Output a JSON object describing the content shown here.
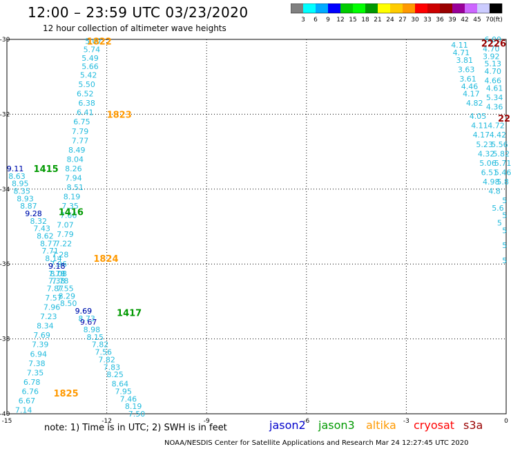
{
  "header": {
    "title": "12:00 – 23:59 UTC 03/23/2020",
    "subtitle": "12 hour collection of altimeter wave heights"
  },
  "legend": {
    "unit": "(ft)",
    "levels": [
      "3",
      "6",
      "9",
      "12",
      "15",
      "18",
      "21",
      "24",
      "27",
      "30",
      "33",
      "36",
      "39",
      "42",
      "45",
      "70"
    ],
    "colors": [
      "#808080",
      "#00ffff",
      "#00aaff",
      "#0000ff",
      "#00cc00",
      "#00ff00",
      "#009900",
      "#ffff00",
      "#ffcc00",
      "#ff9900",
      "#ff0000",
      "#cc0000",
      "#990000",
      "#990099",
      "#cc66ff",
      "#ccccff",
      "#000000"
    ]
  },
  "map": {
    "x_ticks": [
      "-15",
      "-12",
      "-9",
      "-6",
      "-3",
      "0"
    ],
    "y_ticks": [
      "-30",
      "-32",
      "-34",
      "-36",
      "-38",
      "-40"
    ],
    "lon_range": [
      -15,
      0
    ],
    "lat_range": [
      -40,
      -30
    ],
    "track_labels": [
      {
        "text": "1822",
        "lon": -12.6,
        "lat": -30.05,
        "color": "#ff9900"
      },
      {
        "text": "1823",
        "lon": -12.0,
        "lat": -32.0,
        "color": "#ff9900"
      },
      {
        "text": "1824",
        "lon": -12.4,
        "lat": -35.85,
        "color": "#ff9900"
      },
      {
        "text": "1825",
        "lon": -13.6,
        "lat": -39.45,
        "color": "#ff9900"
      },
      {
        "text": "1415",
        "lon": -14.2,
        "lat": -33.45,
        "color": "#009900"
      },
      {
        "text": "1416",
        "lon": -13.45,
        "lat": -34.6,
        "color": "#009900"
      },
      {
        "text": "1417",
        "lon": -11.7,
        "lat": -37.3,
        "color": "#009900"
      },
      {
        "text": "2226",
        "lon": -0.75,
        "lat": -30.1,
        "color": "#990000"
      },
      {
        "text": "22",
        "lon": -0.25,
        "lat": -32.1,
        "color": "#990000"
      }
    ],
    "altika_1822_1824": [
      {
        "v": "5.07",
        "lon": -12.4,
        "lat": -30.05
      },
      {
        "v": "5.74",
        "lon": -12.45,
        "lat": -30.27
      },
      {
        "v": "5.49",
        "lon": -12.5,
        "lat": -30.5
      },
      {
        "v": "5.66",
        "lon": -12.5,
        "lat": -30.72
      },
      {
        "v": "5.42",
        "lon": -12.55,
        "lat": -30.95
      },
      {
        "v": "5.50",
        "lon": -12.6,
        "lat": -31.2
      },
      {
        "v": "6.52",
        "lon": -12.65,
        "lat": -31.45
      },
      {
        "v": "6.38",
        "lon": -12.6,
        "lat": -31.7
      },
      {
        "v": "6.41",
        "lon": -12.65,
        "lat": -31.95
      },
      {
        "v": "6.75",
        "lon": -12.75,
        "lat": -32.2
      },
      {
        "v": "7.79",
        "lon": -12.8,
        "lat": -32.45
      },
      {
        "v": "7.77",
        "lon": -12.8,
        "lat": -32.7
      },
      {
        "v": "8.49",
        "lon": -12.9,
        "lat": -32.95
      },
      {
        "v": "8.04",
        "lon": -12.95,
        "lat": -33.2
      },
      {
        "v": "8.26",
        "lon": -13.0,
        "lat": -33.45
      },
      {
        "v": "7.94",
        "lon": -13.0,
        "lat": -33.7
      },
      {
        "v": "8.51",
        "lon": -12.95,
        "lat": -33.95
      },
      {
        "v": "8.19",
        "lon": -13.05,
        "lat": -34.2
      },
      {
        "v": "7.35",
        "lon": -13.1,
        "lat": -34.45
      },
      {
        "v": "7.66",
        "lon": -13.15,
        "lat": -34.7
      },
      {
        "v": "7.07",
        "lon": -13.25,
        "lat": -34.95
      },
      {
        "v": "7.79",
        "lon": -13.25,
        "lat": -35.2
      },
      {
        "v": "7.22",
        "lon": -13.3,
        "lat": -35.45
      },
      {
        "v": "7.28",
        "lon": -13.4,
        "lat": -35.75
      },
      {
        "v": "7.96",
        "lon": -13.45,
        "lat": -36.0
      },
      {
        "v": "7.78",
        "lon": -13.5,
        "lat": -36.25
      },
      {
        "v": "7.78",
        "lon": -13.4,
        "lat": -36.45
      },
      {
        "v": "7.55",
        "lon": -13.25,
        "lat": -36.65
      },
      {
        "v": "8.29",
        "lon": -13.2,
        "lat": -36.85
      },
      {
        "v": "8.50",
        "lon": -13.15,
        "lat": -37.05
      },
      {
        "v": "9.69",
        "lon": -12.7,
        "lat": -37.25
      }
    ],
    "altika_1825": [
      {
        "v": "8.73",
        "lon": -12.6,
        "lat": -37.45
      },
      {
        "v": "8.98",
        "lon": -12.45,
        "lat": -37.75
      },
      {
        "v": "8.15",
        "lon": -12.35,
        "lat": -37.95
      },
      {
        "v": "7.82",
        "lon": -12.2,
        "lat": -38.15
      },
      {
        "v": "7.56",
        "lon": -12.1,
        "lat": -38.35
      },
      {
        "v": "7.82",
        "lon": -12.0,
        "lat": -38.55
      },
      {
        "v": "7.83",
        "lon": -11.85,
        "lat": -38.75
      },
      {
        "v": "8.25",
        "lon": -11.75,
        "lat": -38.95
      },
      {
        "v": "8.64",
        "lon": -11.6,
        "lat": -39.2
      },
      {
        "v": "7.95",
        "lon": -11.5,
        "lat": -39.4
      },
      {
        "v": "7.46",
        "lon": -11.35,
        "lat": -39.6
      },
      {
        "v": "8.19",
        "lon": -11.2,
        "lat": -39.8
      },
      {
        "v": "7.50",
        "lon": -11.1,
        "lat": -40.0
      }
    ],
    "jason3_1415": [
      {
        "v": "9.11",
        "lon": -14.75,
        "lat": -33.45
      },
      {
        "v": "8.63",
        "lon": -14.7,
        "lat": -33.65
      },
      {
        "v": "8.95",
        "lon": -14.6,
        "lat": -33.85
      },
      {
        "v": "8.35",
        "lon": -14.55,
        "lat": -34.05
      },
      {
        "v": "8.93",
        "lon": -14.45,
        "lat": -34.25
      },
      {
        "v": "8.87",
        "lon": -14.35,
        "lat": -34.45
      },
      {
        "v": "9.28",
        "lon": -14.2,
        "lat": -34.65
      },
      {
        "v": "8.32",
        "lon": -14.05,
        "lat": -34.85
      },
      {
        "v": "7.43",
        "lon": -13.95,
        "lat": -35.05
      },
      {
        "v": "8.62",
        "lon": -13.85,
        "lat": -35.25
      },
      {
        "v": "8.77",
        "lon": -13.75,
        "lat": -35.45
      },
      {
        "v": "7.71",
        "lon": -13.7,
        "lat": -35.65
      },
      {
        "v": "8.14",
        "lon": -13.6,
        "lat": -35.85
      },
      {
        "v": "9.18",
        "lon": -13.5,
        "lat": -36.05
      },
      {
        "v": "8.08",
        "lon": -13.45,
        "lat": -36.25
      },
      {
        "v": "7.38",
        "lon": -13.5,
        "lat": -36.45
      },
      {
        "v": "7.87",
        "lon": -13.55,
        "lat": -36.65
      },
      {
        "v": "7.57",
        "lon": -13.6,
        "lat": -36.9
      },
      {
        "v": "7.96",
        "lon": -13.65,
        "lat": -37.15
      },
      {
        "v": "7.23",
        "lon": -13.75,
        "lat": -37.4
      },
      {
        "v": "8.34",
        "lon": -13.85,
        "lat": -37.65
      },
      {
        "v": "7.69",
        "lon": -13.95,
        "lat": -37.9
      },
      {
        "v": "7.39",
        "lon": -14.0,
        "lat": -38.15
      },
      {
        "v": "6.94",
        "lon": -14.05,
        "lat": -38.4
      },
      {
        "v": "7.38",
        "lon": -14.1,
        "lat": -38.65
      },
      {
        "v": "7.35",
        "lon": -14.15,
        "lat": -38.9
      },
      {
        "v": "6.78",
        "lon": -14.25,
        "lat": -39.15
      },
      {
        "v": "6.76",
        "lon": -14.3,
        "lat": -39.4
      },
      {
        "v": "6.67",
        "lon": -14.4,
        "lat": -39.65
      },
      {
        "v": "7.14",
        "lon": -14.5,
        "lat": -39.9
      }
    ],
    "jason2_points": [
      {
        "v": "9.11",
        "lon": -14.75,
        "lat": -33.45
      },
      {
        "v": "9.28",
        "lon": -14.2,
        "lat": -34.65
      },
      {
        "v": "9.18",
        "lon": -13.5,
        "lat": -36.05
      },
      {
        "v": "9.69",
        "lon": -12.7,
        "lat": -37.25
      },
      {
        "v": "9.67",
        "lon": -12.55,
        "lat": -37.55
      }
    ],
    "right_track_a": [
      {
        "v": "4.11",
        "lon": -1.4,
        "lat": -30.15
      },
      {
        "v": "4.71",
        "lon": -1.35,
        "lat": -30.35
      },
      {
        "v": "3.81",
        "lon": -1.25,
        "lat": -30.55
      },
      {
        "v": "3.63",
        "lon": -1.2,
        "lat": -30.8
      },
      {
        "v": "3.61",
        "lon": -1.15,
        "lat": -31.05
      },
      {
        "v": "4.46",
        "lon": -1.1,
        "lat": -31.25
      },
      {
        "v": "4.17",
        "lon": -1.05,
        "lat": -31.45
      },
      {
        "v": "4.82",
        "lon": -0.95,
        "lat": -31.7
      },
      {
        "v": "4.05",
        "lon": -0.85,
        "lat": -32.05
      },
      {
        "v": "4.11",
        "lon": -0.8,
        "lat": -32.3
      },
      {
        "v": "4.17",
        "lon": -0.75,
        "lat": -32.55
      },
      {
        "v": "5.23",
        "lon": -0.65,
        "lat": -32.8
      },
      {
        "v": "4.32",
        "lon": -0.6,
        "lat": -33.05
      },
      {
        "v": "5.06",
        "lon": -0.55,
        "lat": -33.3
      },
      {
        "v": "6.51",
        "lon": -0.5,
        "lat": -33.55
      },
      {
        "v": "4.98",
        "lon": -0.45,
        "lat": -33.8
      },
      {
        "v": "4.8",
        "lon": -0.35,
        "lat": -34.05
      },
      {
        "v": "5.6",
        "lon": -0.25,
        "lat": -34.5
      },
      {
        "v": "5",
        "lon": -0.2,
        "lat": -34.9
      }
    ],
    "right_track_b": [
      {
        "v": "6.00",
        "lon": -0.4,
        "lat": -30.0
      },
      {
        "v": "4.70",
        "lon": -0.45,
        "lat": -30.25
      },
      {
        "v": "3.92",
        "lon": -0.45,
        "lat": -30.45
      },
      {
        "v": "5.13",
        "lon": -0.4,
        "lat": -30.65
      },
      {
        "v": "4.70",
        "lon": -0.4,
        "lat": -30.85
      },
      {
        "v": "4.66",
        "lon": -0.4,
        "lat": -31.1
      },
      {
        "v": "4.61",
        "lon": -0.35,
        "lat": -31.3
      },
      {
        "v": "5.34",
        "lon": -0.35,
        "lat": -31.55
      },
      {
        "v": "4.36",
        "lon": -0.35,
        "lat": -31.8
      },
      {
        "v": "4.72",
        "lon": -0.3,
        "lat": -32.3
      },
      {
        "v": "4.42",
        "lon": -0.25,
        "lat": -32.55
      },
      {
        "v": "5.56",
        "lon": -0.2,
        "lat": -32.8
      },
      {
        "v": "5.82",
        "lon": -0.15,
        "lat": -33.05
      },
      {
        "v": "5.71",
        "lon": -0.1,
        "lat": -33.3
      },
      {
        "v": "5.46",
        "lon": -0.1,
        "lat": -33.55
      },
      {
        "v": "5.8",
        "lon": -0.1,
        "lat": -33.8
      },
      {
        "v": "5",
        "lon": -0.05,
        "lat": -34.3
      },
      {
        "v": "5",
        "lon": -0.05,
        "lat": -34.7
      },
      {
        "v": "5",
        "lon": -0.05,
        "lat": -35.1
      },
      {
        "v": "5",
        "lon": -0.05,
        "lat": -35.5
      },
      {
        "v": "5",
        "lon": -0.05,
        "lat": -35.9
      }
    ]
  },
  "note": "note:  1) Time is in UTC;  2) SWH is in feet",
  "satellites": [
    {
      "name": "jason2",
      "color": "#0000cc"
    },
    {
      "name": "jason3",
      "color": "#009900"
    },
    {
      "name": "altika",
      "color": "#ff9900"
    },
    {
      "name": "cryosat",
      "color": "#ff0000"
    },
    {
      "name": "s3a",
      "color": "#990000"
    }
  ],
  "footer": "NOAA/NESDIS Center for Satellite Applications and Research    Mar 24 12:27:45 UTC 2020"
}
